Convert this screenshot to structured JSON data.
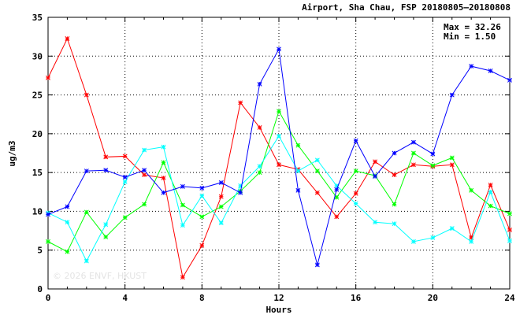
{
  "chart_data": {
    "type": "line",
    "title": "Airport, Sha Chau, FSP 20180805—20180808",
    "stats": {
      "max": "Max = 32.26",
      "min": "Min =  1.50"
    },
    "watermark": "© 2026  ENVF, HKUST",
    "xlabel": "Hours",
    "ylabel": "ug/m3",
    "xlim": [
      0,
      24
    ],
    "ylim": [
      0,
      35
    ],
    "x_ticks": [
      0,
      4,
      8,
      12,
      16,
      20,
      24
    ],
    "y_ticks": [
      0,
      5,
      10,
      15,
      20,
      25,
      30,
      35
    ],
    "grid": true,
    "x": [
      0,
      1,
      2,
      3,
      4,
      5,
      6,
      7,
      8,
      9,
      10,
      11,
      12,
      13,
      14,
      15,
      16,
      17,
      18,
      19,
      20,
      21,
      22,
      23,
      24
    ],
    "series": [
      {
        "color": "#ff0000",
        "values": [
          27.2,
          32.26,
          25.0,
          17.0,
          17.1,
          14.7,
          14.3,
          1.5,
          5.6,
          11.9,
          24.0,
          20.8,
          16.0,
          15.4,
          12.4,
          9.3,
          12.3,
          16.4,
          14.7,
          16.0,
          15.8,
          16.0,
          6.6,
          13.4,
          7.6
        ]
      },
      {
        "color": "#00ff00",
        "values": [
          6.1,
          4.8,
          9.9,
          6.7,
          9.2,
          10.9,
          16.3,
          10.8,
          9.3,
          10.6,
          12.6,
          15.0,
          22.9,
          18.5,
          15.2,
          11.8,
          15.2,
          14.6,
          10.9,
          17.5,
          15.9,
          16.9,
          12.7,
          10.7,
          9.7
        ]
      },
      {
        "color": "#00ffff",
        "values": [
          9.8,
          8.6,
          3.6,
          8.3,
          13.8,
          17.9,
          18.3,
          8.2,
          12.0,
          8.5,
          13.3,
          15.8,
          19.7,
          15.2,
          16.6,
          13.3,
          11.0,
          8.6,
          8.4,
          6.1,
          6.6,
          7.8,
          6.1,
          12.5,
          6.2
        ]
      },
      {
        "color": "#0000ff",
        "values": [
          9.6,
          10.6,
          15.2,
          15.3,
          14.4,
          15.3,
          12.4,
          13.2,
          13.0,
          13.7,
          12.4,
          26.4,
          30.9,
          12.7,
          3.1,
          12.8,
          19.1,
          14.5,
          17.5,
          18.9,
          17.4,
          25.0,
          28.7,
          28.1,
          26.9
        ]
      }
    ]
  }
}
